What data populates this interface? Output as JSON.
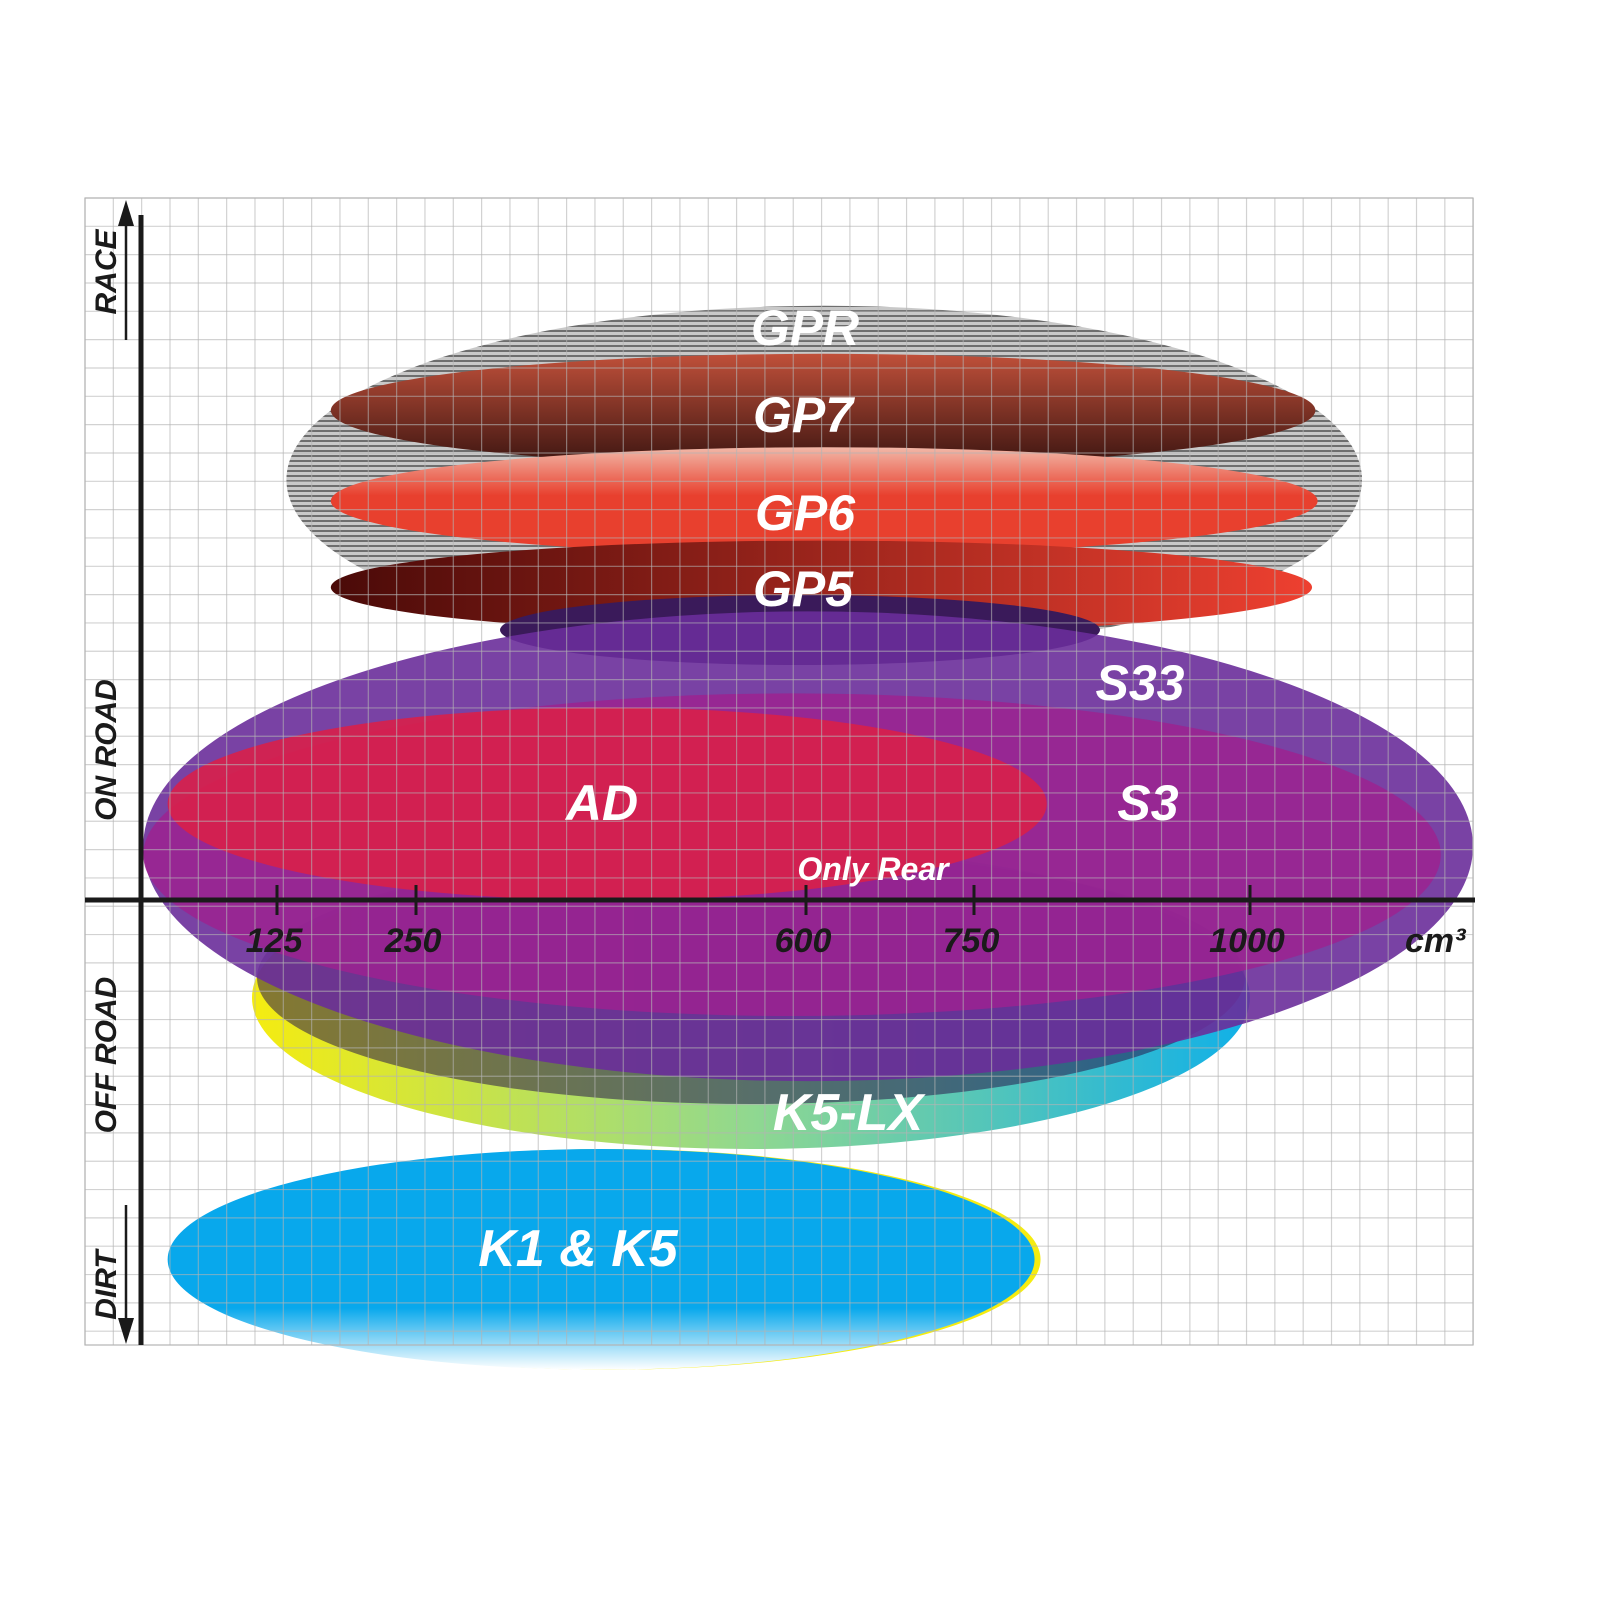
{
  "chart_data": {
    "type": "ellipse-positioning",
    "xlabel_unit": "cm³",
    "x_ticks": [
      125,
      250,
      600,
      750,
      1000
    ],
    "xlim": [
      0,
      1200
    ],
    "y_units": "grid squares from on-road/off-road boundary",
    "ylim": [
      -15.7,
      24.8
    ],
    "grid": true,
    "y_categories": [
      "RACE",
      "ON ROAD",
      "OFF ROAD",
      "DIRT"
    ],
    "products": [
      {
        "name": "GPR",
        "cc_range": [
          131,
          1100
        ],
        "y_range": [
          8.7,
          21.0
        ],
        "color": "#9a9a9a",
        "fill": "striped-gray"
      },
      {
        "name": "GP7",
        "cc_range": [
          171,
          1058
        ],
        "y_range": [
          15.3,
          19.3
        ],
        "color": "#c0503a",
        "fill": "vertical-gradient",
        "color_end": "#3a1410"
      },
      {
        "name": "GP6",
        "cc_range": [
          171,
          1060
        ],
        "y_range": [
          12.2,
          16.0
        ],
        "color": "#f2b8a8",
        "fill": "vertical-gradient",
        "color_end": "#e8402e"
      },
      {
        "name": "GP5",
        "cc_range": [
          171,
          1055
        ],
        "y_range": [
          9.4,
          12.7
        ],
        "color": "#4a0a08",
        "fill": "horizontal-gradient",
        "color_end": "#ee4030"
      },
      {
        "name": "K5-LX",
        "cc_range": [
          100,
          999
        ],
        "y_range": [
          -8.8,
          1.9
        ],
        "color": "#f5ec10",
        "fill": "horizontal-gradient",
        "color_end": "#10b0e8"
      },
      {
        "name": "S33",
        "cc_range": [
          2,
          1200
        ],
        "y_range": [
          -6.4,
          10.2
        ],
        "color": "#6a2e9a",
        "fill": "solid"
      },
      {
        "name": "S3",
        "cc_range": [
          2,
          1171
        ],
        "y_range": [
          -4.1,
          7.3
        ],
        "color": "#9c2290",
        "fill": "solid"
      },
      {
        "name": "AD",
        "cc_range": [
          24,
          816
        ],
        "y_range": [
          0,
          6.8
        ],
        "color": "#d8204a",
        "fill": "solid"
      },
      {
        "name": "K1 & K5",
        "cc_range": [
          24,
          805
        ],
        "y_range": [
          -16.6,
          -8.8
        ],
        "color": "#08a8ec",
        "fill": "solid"
      }
    ],
    "annotations": [
      "Only Rear"
    ]
  }
}
